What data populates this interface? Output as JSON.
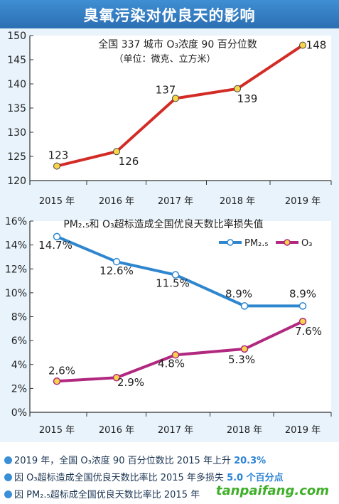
{
  "header": {
    "title": "臭氧污染对优良天的影响"
  },
  "chart_data": [
    {
      "type": "line",
      "title": "全国 337 城市 O₃浓度 90 百分位数",
      "subtitle": "（单位：微克、立方米）",
      "categories": [
        "2015 年",
        "2016 年",
        "2017 年",
        "2018 年",
        "2019 年"
      ],
      "series": [
        {
          "values": [
            123,
            126,
            137,
            139,
            148
          ],
          "labels": [
            "123",
            "126",
            "137",
            "139",
            "148"
          ],
          "color": "#d32b25"
        }
      ],
      "ylim": [
        120,
        150
      ],
      "yticks": [
        "120",
        "125",
        "130",
        "135",
        "140",
        "145",
        "150"
      ],
      "grid": false
    },
    {
      "type": "line",
      "title": "PM₂.₅和 O₃超标造成全国优良天数比率损失值",
      "categories": [
        "2015 年",
        "2016 年",
        "2017 年",
        "2018 年",
        "2019 年"
      ],
      "series": [
        {
          "name": "PM₂.₅",
          "values": [
            14.7,
            12.6,
            11.5,
            8.9,
            8.9
          ],
          "labels": [
            "14.7%",
            "12.6%",
            "11.5%",
            "8.9%",
            "8.9%"
          ],
          "color": "#2e86cf"
        },
        {
          "name": "O₃",
          "values": [
            2.6,
            2.9,
            4.8,
            5.3,
            7.6
          ],
          "labels": [
            "2.6%",
            "2.9%",
            "4.8%",
            "5.3%",
            "7.6%"
          ],
          "color": "#b1287f"
        }
      ],
      "ylim": [
        0,
        16
      ],
      "yticks": [
        "0%",
        "2%",
        "4%",
        "6%",
        "8%",
        "10%",
        "12%",
        "14%",
        "16%"
      ],
      "legend": "top-right",
      "grid": false
    }
  ],
  "bullets": [
    {
      "pre": "2019 年，全国 O₃浓度 90 百分位数比 2015 年上升 ",
      "hl": "20.3%"
    },
    {
      "pre": "因 O₃超标造成全国优良天数比率比 2015 年多损失 ",
      "hl": "5.0 个百分点"
    },
    {
      "pre": "因 PM₂.₅超标成全国优良天数比率比 2015 年",
      "hl": ""
    }
  ],
  "watermark": "tanpaifang.com"
}
